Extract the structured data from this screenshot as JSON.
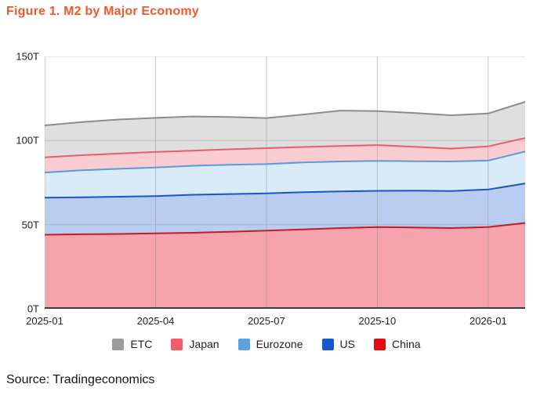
{
  "title": "Figure 1. M2 by Major Economy",
  "source": "Source: Tradingeconomics",
  "colors": {
    "title": "#f4572c",
    "text": "#1f1f1f",
    "source_text": "#141414",
    "grid": "#c9c9c9",
    "axis_line": "#3c3c3c",
    "background": "#ffffff"
  },
  "chart_data": {
    "type": "area",
    "subtype": "stacked",
    "title": "Figure 1. M2 by Major Economy",
    "unit": "T",
    "xlabel": "",
    "ylabel": "",
    "ylim": [
      0,
      150
    ],
    "grid": true,
    "legend_position": "bottom",
    "x": [
      "2025-01",
      "2025-02",
      "2025-03",
      "2025-04",
      "2025-05",
      "2025-06",
      "2025-07",
      "2025-08",
      "2025-09",
      "2025-10",
      "2025-11",
      "2025-12",
      "2026-01",
      "2026-02"
    ],
    "x_tick_indices": [
      0,
      3,
      6,
      9,
      12
    ],
    "x_tick_labels": [
      "2025-01",
      "2025-04",
      "2025-07",
      "2025-10",
      "2026-01"
    ],
    "y_ticks": [
      {
        "value": 0,
        "label": "0T"
      },
      {
        "value": 50,
        "label": "50T"
      },
      {
        "value": 100,
        "label": "100T"
      },
      {
        "value": 150,
        "label": "150T"
      }
    ],
    "stack_order_bottom_to_top": [
      "China",
      "US",
      "Eurozone",
      "Japan",
      "ETC"
    ],
    "legend_order": [
      "ETC",
      "Japan",
      "Eurozone",
      "US",
      "China"
    ],
    "series": [
      {
        "name": "ETC",
        "fill": "#dfdfdf",
        "line": "#8c8c8c",
        "legend": "#9c9c9c",
        "values": [
          19.0,
          19.7,
          20.2,
          20.3,
          20.3,
          19.2,
          17.9,
          19.3,
          21.0,
          20.2,
          20.1,
          19.8,
          19.6,
          21.5
        ]
      },
      {
        "name": "Japan",
        "fill": "#f9ccd2",
        "line": "#e4606e",
        "legend": "#ed5e6a",
        "values": [
          9.0,
          9.0,
          9.1,
          9.2,
          9.0,
          9.2,
          9.5,
          9.2,
          9.2,
          9.4,
          8.6,
          7.6,
          8.4,
          8.0
        ]
      },
      {
        "name": "Eurozone",
        "fill": "#d9eaf8",
        "line": "#5b9bd8",
        "legend": "#5ba3dc",
        "values": [
          15.0,
          16.0,
          16.6,
          17.0,
          17.2,
          17.4,
          17.4,
          17.7,
          17.8,
          17.8,
          17.5,
          17.6,
          17.2,
          19.0
        ]
      },
      {
        "name": "US",
        "fill": "#b9cdf1",
        "line": "#1d55c8",
        "legend": "#1557d0",
        "values": [
          22.0,
          22.0,
          22.1,
          22.2,
          22.6,
          22.4,
          22.1,
          22.1,
          21.8,
          21.5,
          21.9,
          22.0,
          22.3,
          23.5
        ]
      },
      {
        "name": "China",
        "fill": "#f4a4aa",
        "line": "#c61a28",
        "legend": "#e00d15",
        "values": [
          44.0,
          44.3,
          44.5,
          44.8,
          45.2,
          45.8,
          46.5,
          47.2,
          48.0,
          48.6,
          48.3,
          48.0,
          48.6,
          51.0
        ]
      }
    ]
  }
}
